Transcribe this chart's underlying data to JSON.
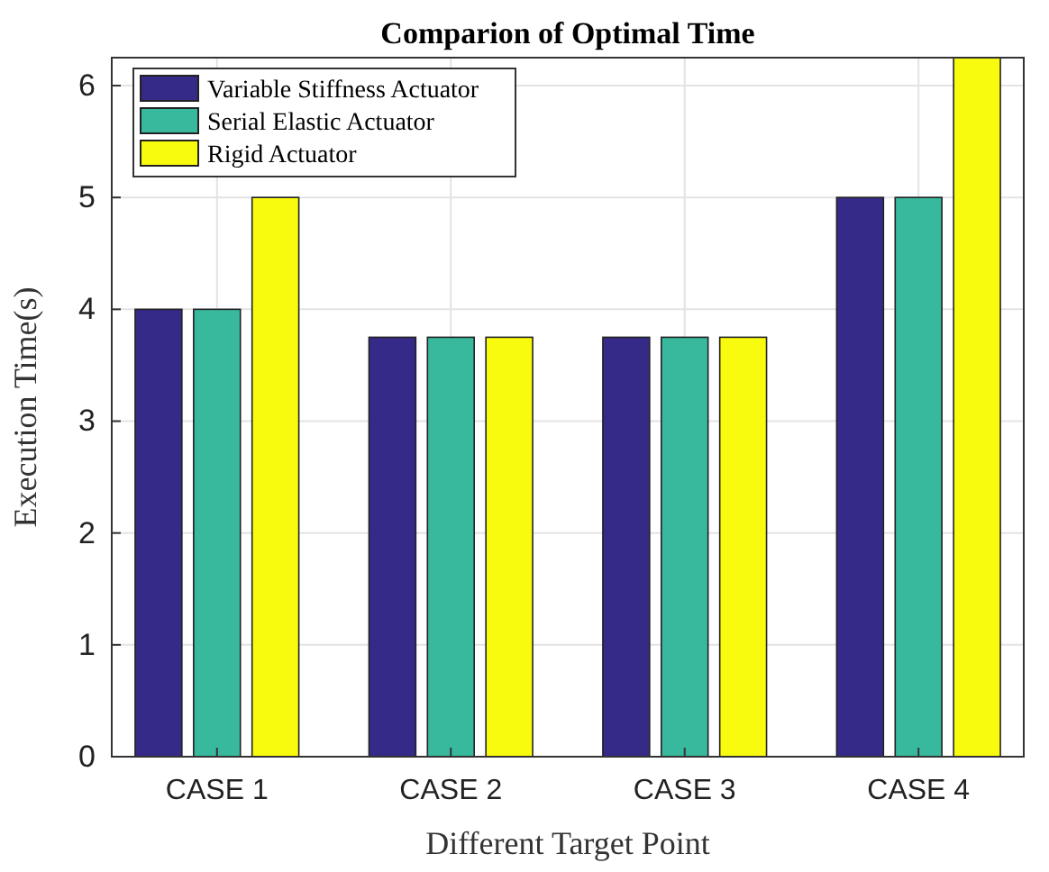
{
  "chart_data": {
    "type": "bar",
    "title": "Comparion of Optimal Time",
    "xlabel": "Different Target Point",
    "ylabel": "Execution Time(s)",
    "categories": [
      "CASE 1",
      "CASE 2",
      "CASE 3",
      "CASE 4"
    ],
    "series": [
      {
        "name": "Variable Stiffness Actuator",
        "color": "#352a87",
        "values": [
          4,
          3.75,
          3.75,
          5
        ]
      },
      {
        "name": "Serial Elastic Actuator",
        "color": "#38b99e",
        "values": [
          4,
          3.75,
          3.75,
          5
        ]
      },
      {
        "name": "Rigid Actuator",
        "color": "#f9fb0e",
        "values": [
          5,
          3.75,
          3.75,
          6.25
        ]
      }
    ],
    "ylim": [
      0,
      6.25
    ],
    "yticks": [
      0,
      1,
      2,
      3,
      4,
      5,
      6
    ],
    "grid": true,
    "legend": "top left"
  }
}
